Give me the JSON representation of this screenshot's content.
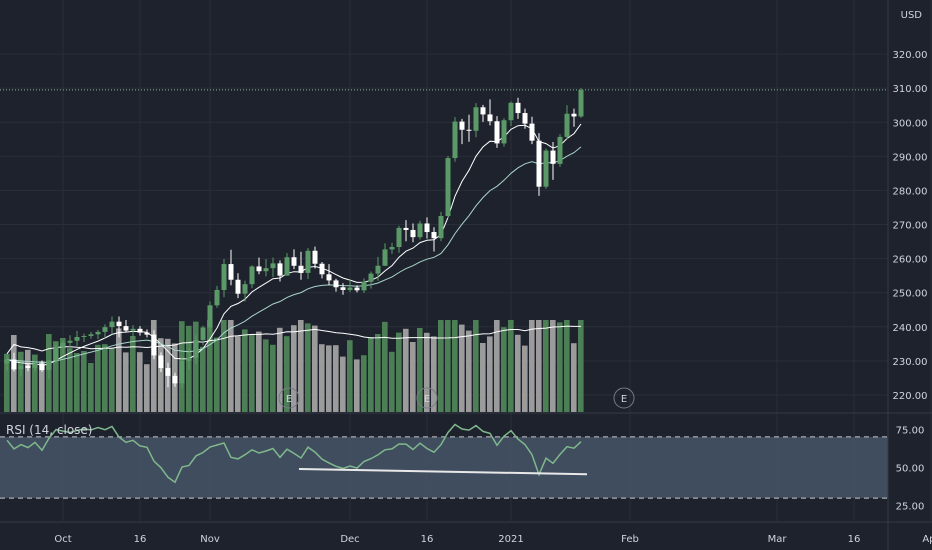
{
  "currency": "USD",
  "colors": {
    "background": "#1e222d",
    "grid": "#2a2e39",
    "up": "#5b9a68",
    "down": "#ffffff",
    "up_volume": "#4c7f55",
    "down_volume": "#9b9b9b",
    "ema_fast": "#ffffff",
    "ema_slow": "#a9d5c9",
    "volume_ma": "#ffffff",
    "rsi_line": "#7fb88c",
    "rsi_band": "#465569",
    "trendline": "#e8e8e8",
    "price_level": "#7fb88c"
  },
  "rsi": {
    "label": "RSI (14, close)"
  },
  "earnings_marker": "E",
  "x_axis_labels": [
    "Oct",
    "16",
    "Nov",
    "Dec",
    "16",
    "2021",
    "Feb",
    "Mar",
    "16",
    "Apr"
  ],
  "chart_data": [
    {
      "type": "candlestick",
      "y_axis_ticks": [
        "220.00",
        "230.00",
        "240.00",
        "250.00",
        "260.00",
        "270.00",
        "280.00",
        "290.00",
        "300.00",
        "310.00",
        "320.00"
      ],
      "ylim": [
        215,
        330
      ],
      "last_close": 309.5,
      "candles": [
        [
          229.2,
          231.8,
          227.1,
          230.4
        ],
        [
          230.4,
          232.4,
          226.9,
          227.5
        ],
        [
          227.5,
          229.8,
          225.6,
          228.6
        ],
        [
          228.6,
          229.2,
          227.0,
          227.9
        ],
        [
          227.9,
          229.9,
          227.0,
          229.2
        ],
        [
          229.2,
          230.1,
          226.8,
          227.3
        ],
        [
          227.3,
          230.2,
          224.7,
          230.1
        ],
        [
          230.1,
          235.3,
          229.5,
          234.1
        ],
        [
          234.1,
          236.1,
          232.1,
          235.3
        ],
        [
          235.3,
          237.5,
          233.7,
          235.9
        ],
        [
          235.9,
          238.8,
          234.3,
          237.0
        ],
        [
          237.0,
          238.0,
          235.5,
          237.3
        ],
        [
          237.3,
          238.5,
          236.5,
          237.8
        ],
        [
          237.8,
          239.1,
          236.4,
          238.5
        ],
        [
          238.5,
          240.7,
          236.4,
          239.9
        ],
        [
          239.9,
          243.0,
          237.8,
          241.5
        ],
        [
          241.5,
          243.0,
          236.9,
          240.2
        ],
        [
          240.2,
          242.0,
          238.4,
          238.9
        ],
        [
          238.9,
          240.5,
          236.5,
          239.4
        ],
        [
          239.4,
          240.2,
          237.4,
          238.3
        ],
        [
          238.3,
          239.2,
          236.9,
          237.7
        ],
        [
          237.7,
          239.0,
          230.5,
          231.6
        ],
        [
          231.6,
          232.5,
          226.7,
          227.9
        ],
        [
          227.9,
          229.5,
          222.3,
          225.6
        ],
        [
          225.6,
          226.5,
          222.4,
          223.4
        ],
        [
          223.4,
          231.4,
          222.1,
          230.0
        ],
        [
          230.0,
          233.7,
          227.5,
          230.9
        ],
        [
          230.9,
          237.5,
          229.1,
          236.1
        ],
        [
          236.1,
          240.3,
          234.6,
          239.8
        ],
        [
          239.8,
          247.4,
          238.5,
          246.3
        ],
        [
          246.3,
          252.0,
          245.6,
          250.8
        ],
        [
          250.8,
          259.9,
          248.7,
          258.4
        ],
        [
          258.4,
          262.6,
          252.2,
          253.8
        ],
        [
          253.8,
          255.7,
          248.4,
          249.7
        ],
        [
          249.7,
          253.5,
          247.4,
          252.5
        ],
        [
          252.5,
          258.0,
          251.3,
          257.7
        ],
        [
          257.7,
          260.3,
          255.4,
          256.3
        ],
        [
          256.3,
          259.9,
          254.8,
          257.2
        ],
        [
          257.2,
          260.3,
          254.6,
          258.6
        ],
        [
          258.6,
          259.5,
          253.3,
          255.0
        ],
        [
          255.0,
          261.6,
          255.3,
          260.4
        ],
        [
          260.4,
          262.7,
          256.9,
          257.9
        ],
        [
          257.9,
          262.0,
          253.8,
          255.8
        ],
        [
          255.8,
          263.1,
          254.0,
          262.3
        ],
        [
          262.3,
          263.5,
          257.1,
          258.5
        ],
        [
          258.5,
          259.0,
          254.2,
          255.4
        ],
        [
          255.4,
          258.4,
          252.3,
          253.6
        ],
        [
          253.6,
          254.1,
          250.3,
          251.6
        ],
        [
          251.6,
          252.8,
          249.4,
          250.8
        ],
        [
          250.8,
          254.0,
          250.2,
          251.5
        ],
        [
          251.5,
          252.2,
          250.1,
          250.7
        ],
        [
          250.7,
          254.2,
          249.9,
          253.2
        ],
        [
          253.2,
          256.2,
          251.2,
          255.6
        ],
        [
          255.6,
          260.5,
          253.5,
          257.9
        ],
        [
          257.9,
          264.5,
          257.8,
          262.7
        ],
        [
          262.7,
          264.6,
          261.4,
          263.4
        ],
        [
          263.4,
          269.6,
          261.7,
          269.0
        ],
        [
          269.0,
          271.3,
          265.1,
          268.4
        ],
        [
          268.4,
          270.3,
          264.8,
          266.3
        ],
        [
          266.3,
          271.1,
          265.6,
          270.3
        ],
        [
          270.3,
          272.1,
          265.9,
          267.8
        ],
        [
          267.8,
          269.2,
          262.1,
          266.0
        ],
        [
          266.0,
          273.7,
          265.1,
          272.5
        ],
        [
          272.5,
          290.1,
          271.9,
          289.5
        ],
        [
          289.5,
          301.5,
          288.4,
          300.2
        ],
        [
          300.2,
          301.0,
          293.6,
          297.8
        ],
        [
          297.8,
          302.2,
          294.3,
          297.5
        ],
        [
          297.5,
          305.6,
          295.6,
          304.4
        ],
        [
          304.4,
          305.1,
          300.1,
          302.3
        ],
        [
          302.3,
          306.7,
          299.1,
          300.3
        ],
        [
          300.3,
          301.8,
          292.5,
          293.8
        ],
        [
          293.8,
          301.2,
          292.9,
          300.6
        ],
        [
          300.6,
          306.1,
          298.9,
          305.7
        ],
        [
          305.7,
          307.2,
          301.0,
          302.7
        ],
        [
          302.7,
          304.0,
          298.1,
          299.6
        ],
        [
          299.6,
          301.6,
          293.6,
          294.6
        ],
        [
          294.6,
          296.8,
          278.4,
          281.1
        ],
        [
          281.1,
          292.3,
          280.5,
          291.7
        ],
        [
          291.7,
          294.2,
          283.1,
          287.8
        ],
        [
          287.8,
          296.5,
          286.9,
          295.7
        ],
        [
          295.7,
          305.0,
          295.0,
          302.5
        ],
        [
          302.5,
          304.0,
          298.7,
          301.7
        ],
        [
          301.7,
          310.1,
          301.3,
          309.5
        ]
      ]
    },
    {
      "type": "line",
      "name": "RSI (14, close)",
      "y_axis_ticks": [
        "25.00",
        "50.00",
        "75.00"
      ],
      "ylim": [
        15,
        85
      ],
      "band": [
        30,
        70
      ],
      "values": [
        67.8,
        62.2,
        65.0,
        63.0,
        66.4,
        61.3,
        69.1,
        74.8,
        73.8,
        72.9,
        74.3,
        75.2,
        74.6,
        76.2,
        74.7,
        76.8,
        69.9,
        66.5,
        67.8,
        64.1,
        63.2,
        54.1,
        49.8,
        43.6,
        40.4,
        50.3,
        51.3,
        57.6,
        59.8,
        63.4,
        64.7,
        66.0,
        56.6,
        55.6,
        58.4,
        61.6,
        59.5,
        60.8,
        62.4,
        56.7,
        62.0,
        59.2,
        56.2,
        63.3,
        60.1,
        55.4,
        53.0,
        50.8,
        49.4,
        51.0,
        49.6,
        53.9,
        55.8,
        58.3,
        61.6,
        62.2,
        65.4,
        65.3,
        61.8,
        65.9,
        62.4,
        60.0,
        64.9,
        72.9,
        78.1,
        75.2,
        74.5,
        77.4,
        73.6,
        72.3,
        64.5,
        70.5,
        74.1,
        68.6,
        65.0,
        58.4,
        45.3,
        56.1,
        52.8,
        58.6,
        63.6,
        62.6,
        66.9
      ],
      "trendline": [
        {
          "index": 46,
          "value": 49.0
        },
        {
          "index": 90,
          "value": 45.6
        }
      ]
    }
  ]
}
